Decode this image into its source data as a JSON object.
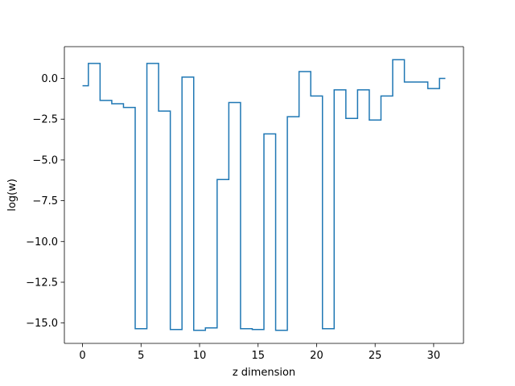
{
  "chart_data": {
    "type": "line",
    "drawstyle": "steps-mid",
    "title": "",
    "xlabel": "z dimension",
    "ylabel": "log(w)",
    "xlim": [
      -1.55,
      32.55
    ],
    "ylim": [
      -16.25,
      1.95
    ],
    "xticks": [
      0,
      5,
      10,
      15,
      20,
      25,
      30
    ],
    "xtick_labels": [
      "0",
      "5",
      "10",
      "15",
      "20",
      "25",
      "30"
    ],
    "yticks": [
      0.0,
      -2.5,
      -5.0,
      -7.5,
      -10.0,
      -12.5,
      -15.0
    ],
    "ytick_labels": [
      "0.0",
      "−2.5",
      "−5.0",
      "−7.5",
      "−10.0",
      "−12.5",
      "−15.0"
    ],
    "grid": false,
    "legend": "none",
    "series": [
      {
        "color": "#1f77b4",
        "x": [
          0,
          1,
          2,
          3,
          4,
          5,
          6,
          7,
          8,
          9,
          10,
          11,
          12,
          13,
          14,
          15,
          16,
          17,
          18,
          19,
          20,
          21,
          22,
          23,
          24,
          25,
          26,
          27,
          28,
          29,
          30,
          31
        ],
        "values": [
          -0.45,
          0.92,
          -1.35,
          -1.55,
          -1.78,
          -15.35,
          0.92,
          -2.0,
          -15.4,
          0.08,
          -15.45,
          -15.3,
          -6.2,
          -1.48,
          -15.35,
          -15.4,
          -3.4,
          -15.45,
          -2.35,
          0.42,
          -1.08,
          -15.35,
          -0.7,
          -2.45,
          -0.7,
          -2.55,
          -1.08,
          1.15,
          -0.22,
          -0.22,
          -0.62,
          0.0
        ]
      }
    ]
  }
}
